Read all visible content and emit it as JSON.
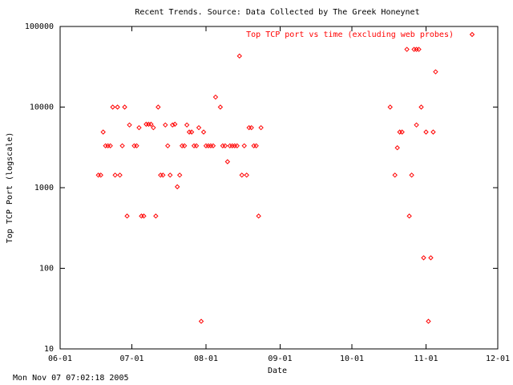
{
  "chart_data": {
    "type": "scatter",
    "title": "Recent Trends. Source: Data Collected by The Greek Honeynet",
    "x_label": "Date",
    "y_label": "Top TCP Port (logscale)",
    "timestamp": "Mon Nov 07 07:02:18 2005",
    "log_scale": true,
    "grid": false,
    "legend": "top-right",
    "xlim": [
      "06-01",
      "12-01"
    ],
    "xticks": [
      "06-01",
      "07-01",
      "08-01",
      "09-01",
      "10-01",
      "11-01",
      "12-01"
    ],
    "ylim": [
      10,
      100000
    ],
    "yticks": [
      10,
      100,
      1000,
      10000,
      100000
    ],
    "series": [
      {
        "name": "Top TCP port vs time (excluding web probes)",
        "color": "#ff0000",
        "x": [
          "06-17",
          "06-18",
          "06-19",
          "06-20",
          "06-21",
          "06-22",
          "06-23",
          "06-24",
          "06-25",
          "06-26",
          "06-27",
          "06-28",
          "06-29",
          "06-30",
          "07-02",
          "07-03",
          "07-04",
          "07-05",
          "07-06",
          "07-07",
          "07-08",
          "07-09",
          "07-10",
          "07-11",
          "07-12",
          "07-13",
          "07-14",
          "07-15",
          "07-16",
          "07-17",
          "07-18",
          "07-19",
          "07-20",
          "07-21",
          "07-22",
          "07-23",
          "07-24",
          "07-25",
          "07-26",
          "07-27",
          "07-28",
          "07-29",
          "07-30",
          "07-31",
          "08-01",
          "08-02",
          "08-03",
          "08-04",
          "08-05",
          "08-07",
          "08-08",
          "08-09",
          "08-10",
          "08-11",
          "08-12",
          "08-13",
          "08-14",
          "08-15",
          "08-16",
          "08-17",
          "08-18",
          "08-19",
          "08-20",
          "08-21",
          "08-22",
          "08-23",
          "08-24",
          "10-17",
          "10-19",
          "10-20",
          "10-21",
          "10-22",
          "10-24",
          "10-25",
          "10-26",
          "10-27",
          "10-28",
          "10-28",
          "10-29",
          "10-30",
          "10-31",
          "11-01",
          "11-02",
          "11-03",
          "11-04",
          "11-05"
        ],
        "values": [
          1433,
          1433,
          4899,
          3306,
          3306,
          3306,
          10000,
          1433,
          10000,
          1433,
          3306,
          10000,
          445,
          6000,
          3306,
          3306,
          5554,
          445,
          445,
          6129,
          6129,
          6129,
          5554,
          445,
          10000,
          1433,
          1433,
          6000,
          3306,
          1433,
          6000,
          6129,
          1026,
          1433,
          3306,
          3306,
          6000,
          4899,
          4899,
          3306,
          3306,
          5554,
          22,
          4899,
          3306,
          3306,
          3306,
          3306,
          13300,
          10000,
          3306,
          3306,
          2100,
          3306,
          3306,
          3306,
          3306,
          43000,
          1433,
          3306,
          1433,
          5554,
          5554,
          3306,
          3306,
          445,
          5554,
          10000,
          1433,
          3128,
          4899,
          4899,
          52000,
          445,
          1433,
          52000,
          52000,
          6000,
          52000,
          10000,
          135,
          4899,
          22,
          135,
          4899,
          27374
        ]
      }
    ]
  }
}
